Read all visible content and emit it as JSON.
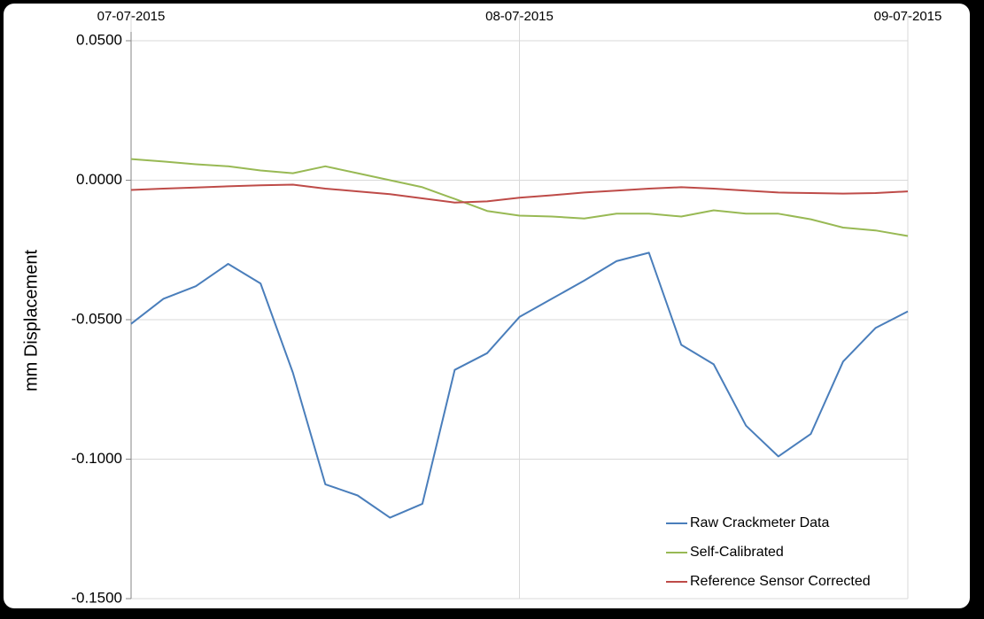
{
  "chart_data": {
    "type": "line",
    "y_label": "mm Displacement",
    "x": [
      0,
      2,
      4,
      6,
      8,
      10,
      12,
      14,
      16,
      18,
      20,
      22,
      24,
      26,
      28,
      30,
      32,
      34,
      36,
      38,
      40,
      42,
      44,
      46,
      48
    ],
    "xlim": [
      0,
      48
    ],
    "xticks": [
      {
        "value": 0,
        "label": "07-07-2015"
      },
      {
        "value": 24,
        "label": "08-07-2015"
      },
      {
        "value": 48,
        "label": "09-07-2015"
      }
    ],
    "ylim": [
      -0.15,
      0.05
    ],
    "yticks": [
      {
        "value": -0.15,
        "label": "-0.1500"
      },
      {
        "value": -0.1,
        "label": "-0.1000"
      },
      {
        "value": -0.05,
        "label": "-0.0500"
      },
      {
        "value": 0,
        "label": "0.0000"
      },
      {
        "value": 0.05,
        "label": "0.0500"
      }
    ],
    "grid": true,
    "legend": "lower right",
    "series": [
      {
        "name": "Raw Crackmeter Data",
        "color": "#4a7ebb",
        "values": [
          -0.0515,
          -0.0425,
          -0.038,
          -0.03,
          -0.037,
          -0.069,
          -0.109,
          -0.113,
          -0.121,
          -0.116,
          -0.068,
          -0.062,
          -0.049,
          -0.0425,
          -0.036,
          -0.029,
          -0.026,
          -0.059,
          -0.066,
          -0.088,
          -0.099,
          -0.091,
          -0.065,
          -0.053,
          -0.047
        ]
      },
      {
        "name": "Self-Calibrated",
        "color": "#98b954",
        "values": [
          0.0076,
          0.0067,
          0.0057,
          0.005,
          0.0035,
          0.0025,
          0.005,
          0.0025,
          0,
          -0.0025,
          -0.0067,
          -0.011,
          -0.0127,
          -0.013,
          -0.0137,
          -0.012,
          -0.012,
          -0.013,
          -0.0108,
          -0.012,
          -0.012,
          -0.014,
          -0.017,
          -0.018,
          -0.02
        ]
      },
      {
        "name": "Reference Sensor Corrected",
        "color": "#be4b48",
        "values": [
          -0.0035,
          -0.003,
          -0.0026,
          -0.0022,
          -0.0018,
          -0.0016,
          -0.003,
          -0.004,
          -0.005,
          -0.0065,
          -0.008,
          -0.0076,
          -0.0063,
          -0.0054,
          -0.0044,
          -0.0037,
          -0.003,
          -0.0025,
          -0.003,
          -0.0037,
          -0.0044,
          -0.0046,
          -0.0048,
          -0.0046,
          -0.004
        ]
      }
    ]
  }
}
